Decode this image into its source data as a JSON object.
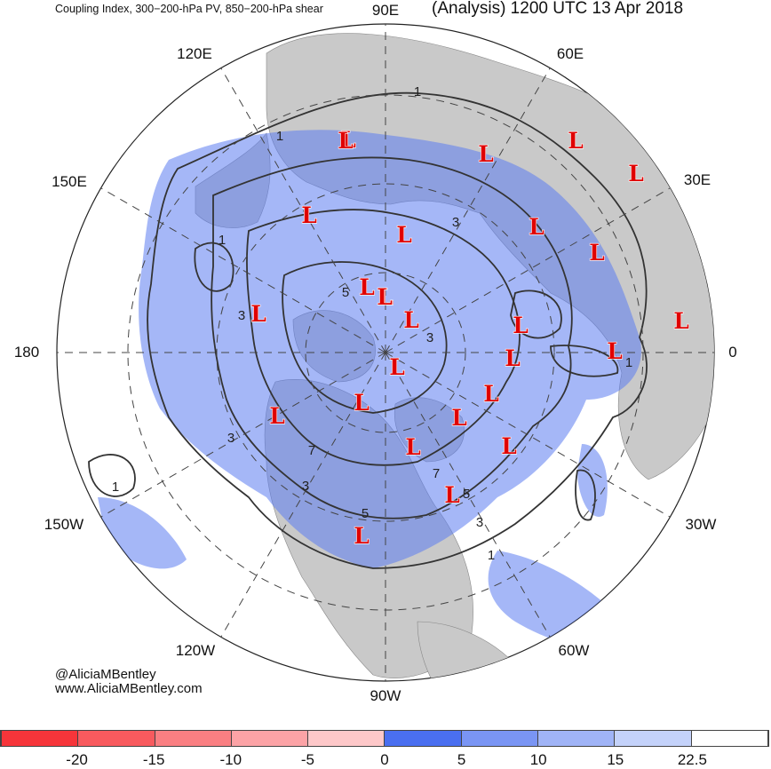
{
  "header": {
    "title_left": "Coupling Index, 300−200-hPa PV, 850−200-hPa shear",
    "title_right": "(Analysis) 1200 UTC 13 Apr 2018"
  },
  "credits": {
    "twitter": "@AliciaMBentley",
    "website": "www.AliciaMBentley.com"
  },
  "map": {
    "projection": "north polar stereographic",
    "longitude_labels": [
      "90E",
      "60E",
      "30E",
      "0",
      "30W",
      "60W",
      "90W",
      "120W",
      "150W",
      "180",
      "150E",
      "120E"
    ],
    "low_symbol": "L",
    "low_count": 27,
    "contour_labels": [
      "1",
      "1",
      "1",
      "1",
      "1",
      "1",
      "3",
      "3",
      "3",
      "3",
      "3",
      "3",
      "5",
      "5",
      "5",
      "7",
      "7"
    ],
    "colors": {
      "land": "#c9c9c9",
      "ocean": "#ffffff",
      "contour": "#333333",
      "low_marker": "#e00000"
    }
  },
  "colorbar": {
    "ticks": [
      "-20",
      "-15",
      "-10",
      "-5",
      "0",
      "5",
      "10",
      "15",
      "22.5"
    ],
    "colors": [
      "#f6353a",
      "#f85a5e",
      "#fa7f82",
      "#fca3a6",
      "#fec8c9",
      "#4a6ff0",
      "#7a95f4",
      "#a0b4f7",
      "#c4d2fa",
      "#ffffff"
    ]
  }
}
